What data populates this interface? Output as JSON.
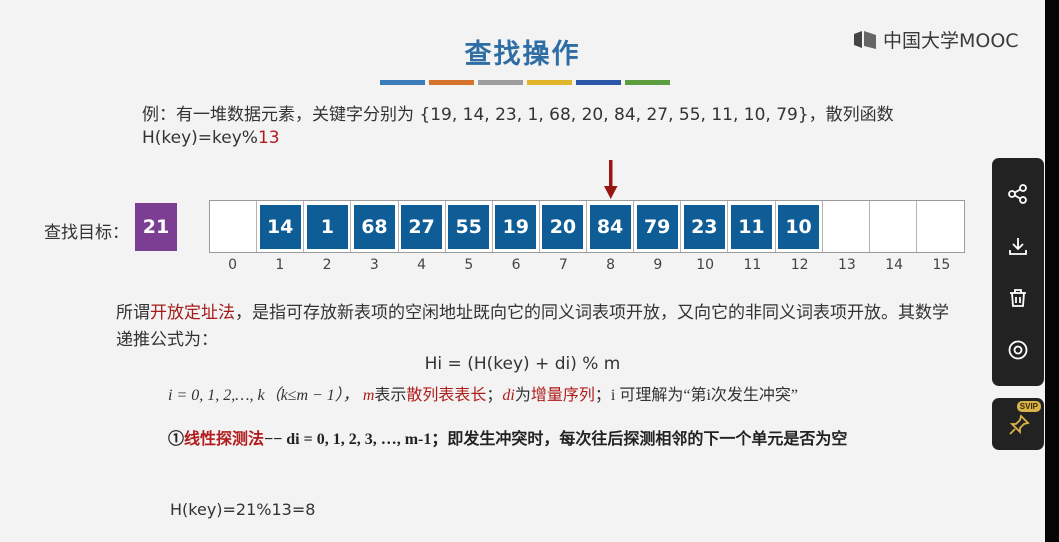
{
  "slide": {
    "title": "查找操作",
    "logo_text": "中国大学MOOC",
    "color_bar": [
      "#3b7cb8",
      "#d5732c",
      "#9c9c9c",
      "#e0b52b",
      "#2d58a8",
      "#5c9e3e"
    ],
    "example_prefix": "例：有一堆数据元素，关键字分别为 {19, 14, 23, 1, 68, 20, 84, 27, 55, 11, 10, 79}，散列函数",
    "hash_prefix": "H(key)=key%",
    "hash_mod": "13",
    "target_label": "查找目标：",
    "target_value": "21",
    "table_cells": [
      "",
      "14",
      "1",
      "68",
      "27",
      "55",
      "19",
      "20",
      "84",
      "79",
      "23",
      "11",
      "10",
      "",
      "",
      ""
    ],
    "indices": [
      "0",
      "1",
      "2",
      "3",
      "4",
      "5",
      "6",
      "7",
      "8",
      "9",
      "10",
      "11",
      "12",
      "13",
      "14",
      "15"
    ],
    "arrow_index": 8,
    "para_prefix": "所谓",
    "para_term": "开放定址法",
    "para_rest": "，是指可存放新表项的空闲地址既向它的同义词表项开放，又向它的非同义词表项开放。其数学递推公式为：",
    "formula": "Hi = (H(key) + di) % m",
    "explain_i": "i = 0, 1, 2,…, k（k≤m − 1），",
    "explain_m": "m",
    "explain_m_text": "表示",
    "explain_table_len": "散列表表长",
    "explain_sep": "；",
    "explain_d": "di",
    "explain_d_text": "为",
    "explain_incr": "增量序列",
    "explain_i2": "；i 可理解为“第i次发生冲突”",
    "linear_prefix": "①",
    "linear_term": "线性探测法",
    "linear_rest": "−− di = 0, 1, 2, 3, …, m-1；即发生冲突时，每次往后探测相邻的下一个单元是否为空",
    "hkey_result": "H(key)=21%13=8"
  },
  "toolbar": {
    "icons": [
      "share-icon",
      "download-icon",
      "delete-icon",
      "view-icon"
    ],
    "svip_badge": "SVIP",
    "svip_icon": "pin-icon"
  }
}
